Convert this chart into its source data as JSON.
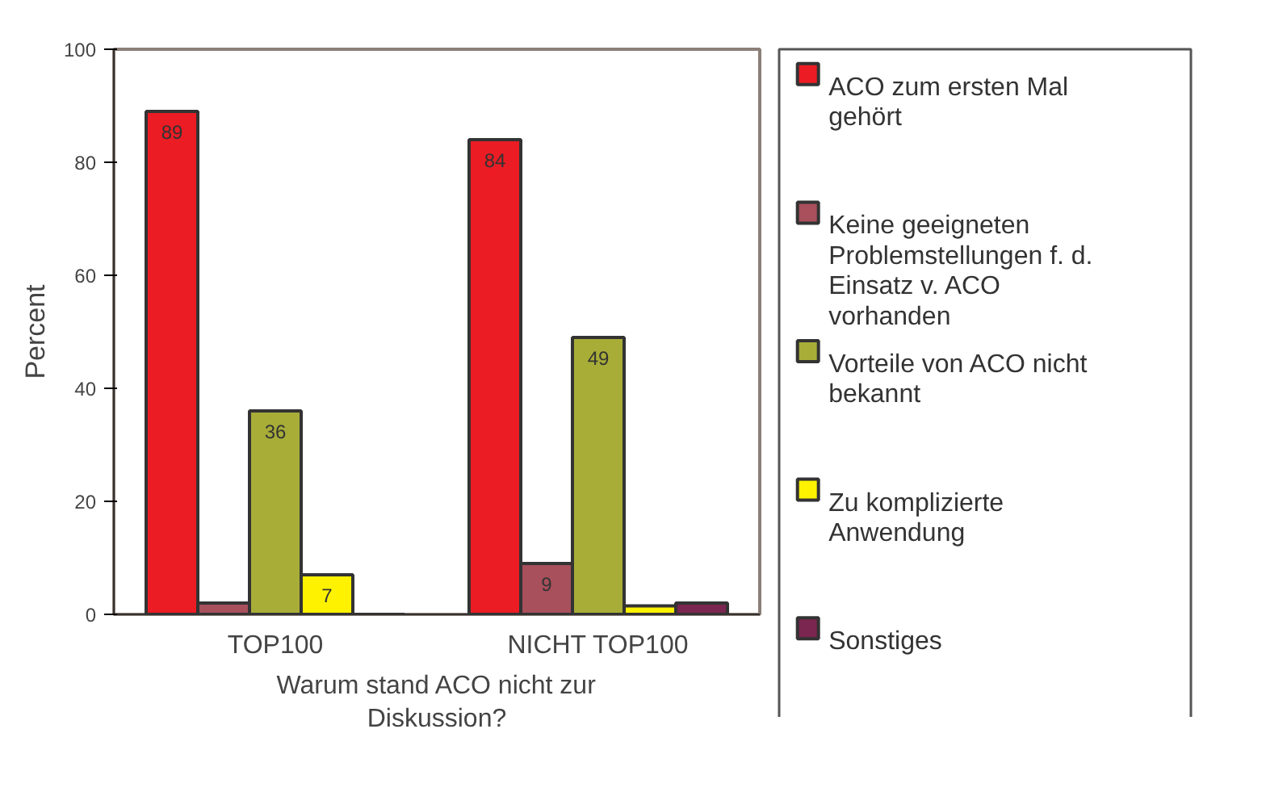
{
  "chart_data": {
    "type": "bar",
    "xlabel": "Warum stand ACO nicht zur Diskussion?",
    "ylabel": "Percent",
    "categories": [
      "TOP100",
      "NICHT TOP100"
    ],
    "ylim": [
      0,
      100
    ],
    "yticks": [
      0,
      20,
      40,
      60,
      80,
      100
    ],
    "grid": false,
    "legend": "right",
    "series": [
      {
        "name": "ACO zum ersten Mal gehört",
        "color": "#ec1c24",
        "values": [
          89,
          84
        ],
        "value_labels": [
          "89",
          "84"
        ]
      },
      {
        "name": "Keine geeigneten Problemstellungen f. d. Einsatz v. ACO vorhanden",
        "color": "#a8505c",
        "values": [
          2,
          9
        ],
        "value_labels": [
          null,
          "9"
        ]
      },
      {
        "name": "Vorteile von ACO nicht bekannt",
        "color": "#a8ad38",
        "values": [
          36,
          49
        ],
        "value_labels": [
          "36",
          "49"
        ]
      },
      {
        "name": "Zu komplizierte Anwendung",
        "color": "#fff200",
        "values": [
          7,
          1.5
        ],
        "value_labels": [
          "7",
          null
        ]
      },
      {
        "name": "Sonstiges",
        "color": "#7b2650",
        "values": [
          null,
          2
        ],
        "value_labels": [
          null,
          null
        ]
      }
    ]
  }
}
